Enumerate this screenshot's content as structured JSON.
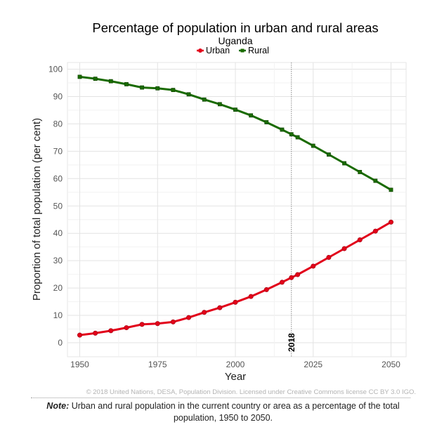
{
  "chart_data": {
    "type": "line",
    "title": "Percentage of population in urban and rural areas",
    "subtitle": "Uganda",
    "xlabel": "Year",
    "ylabel": "Proportion of total population (per cent)",
    "xlim": [
      1950,
      2050
    ],
    "ylim": [
      0,
      100
    ],
    "x_ticks": [
      "1950",
      "1975",
      "2000",
      "2025",
      "2050"
    ],
    "y_ticks": [
      "0",
      "10",
      "20",
      "30",
      "40",
      "50",
      "60",
      "70",
      "80",
      "90",
      "100"
    ],
    "grid": true,
    "legend_position": "top-center",
    "marker": {
      "x": 2018,
      "label": "2018"
    },
    "x": [
      1950,
      1955,
      1960,
      1965,
      1970,
      1975,
      1980,
      1985,
      1990,
      1995,
      2000,
      2005,
      2010,
      2015,
      2018,
      2020,
      2025,
      2030,
      2035,
      2040,
      2045,
      2050
    ],
    "series": [
      {
        "name": "Urban",
        "color": "#e2001a",
        "values": [
          2.8,
          3.5,
          4.4,
          5.5,
          6.7,
          7.0,
          7.6,
          9.2,
          11.1,
          12.8,
          14.8,
          16.9,
          19.4,
          22.1,
          23.8,
          24.9,
          28.0,
          31.2,
          34.4,
          37.6,
          40.8,
          44.1
        ]
      },
      {
        "name": "Rural",
        "color": "#1a6b00",
        "values": [
          97.2,
          96.5,
          95.6,
          94.5,
          93.3,
          93.0,
          92.4,
          90.8,
          88.9,
          87.2,
          85.2,
          83.1,
          80.6,
          77.9,
          76.2,
          75.1,
          72.0,
          68.8,
          65.6,
          62.4,
          59.2,
          55.9
        ]
      }
    ]
  },
  "credit": "© 2018 United Nations, DESA, Population Division. Licensed under Creative Commons license CC BY 3.0 IGO.",
  "note": {
    "label": "Note:",
    "text": "Urban and rural population in the current country or area as a percentage of the total population, 1950 to 2050."
  }
}
